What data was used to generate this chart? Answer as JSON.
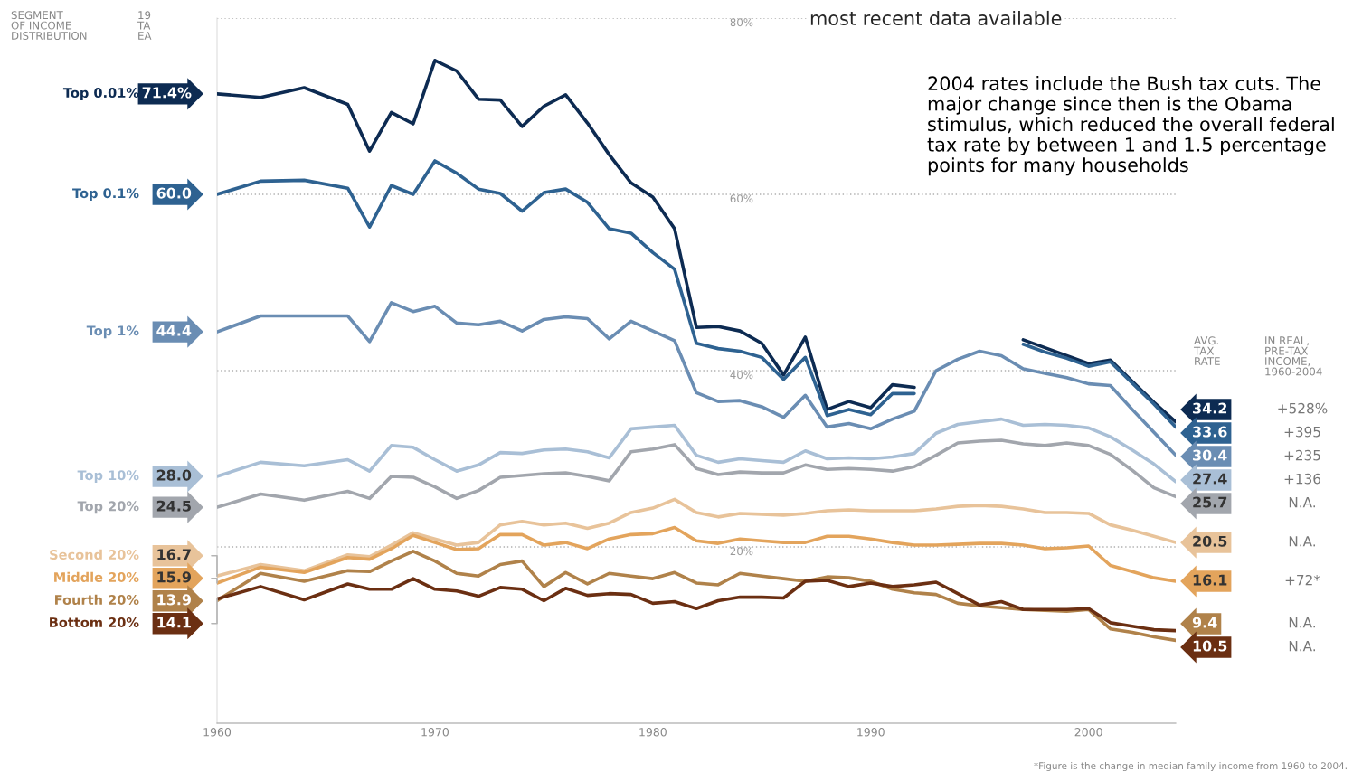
{
  "chart_data": {
    "type": "line",
    "title": "most recent data available",
    "line_style": "solid",
    "grid": "y",
    "x": [
      1960,
      1962,
      1964,
      1966,
      1967,
      1968,
      1969,
      1970,
      1971,
      1972,
      1973,
      1974,
      1975,
      1976,
      1977,
      1978,
      1979,
      1980,
      1981,
      1982,
      1983,
      1984,
      1985,
      1986,
      1987,
      1988,
      1989,
      1990,
      1991,
      1992,
      1993,
      1994,
      1995,
      1996,
      1997,
      1998,
      1999,
      2000,
      2001,
      2002,
      2003,
      2004
    ],
    "xlim": [
      1960,
      2004
    ],
    "xticks": [
      1960,
      1970,
      1980,
      1990,
      2000
    ],
    "ylim": [
      0,
      80
    ],
    "yticks": [
      {
        "value": 20,
        "label": "20%"
      },
      {
        "value": 40,
        "label": "40%"
      },
      {
        "value": 60,
        "label": "60%"
      },
      {
        "value": 80,
        "label": "80%"
      }
    ],
    "series": [
      {
        "name": "Top 0.01%",
        "color": "#0d2b52",
        "values": [
          71.4,
          71.0,
          72.1,
          70.2,
          64.9,
          69.3,
          68.0,
          75.2,
          74.0,
          70.8,
          70.7,
          67.7,
          70.0,
          71.3,
          68.1,
          64.5,
          61.3,
          59.7,
          56.1,
          44.9,
          45.0,
          44.5,
          43.1,
          39.5,
          43.8,
          35.6,
          36.5,
          35.8,
          38.4,
          38.1,
          null,
          null,
          null,
          null,
          43.5,
          42.6,
          41.7,
          40.8,
          41.2,
          38.8,
          36.4,
          34.2
        ],
        "value_labels": [
          "71.4%",
          null,
          null,
          null,
          null,
          null,
          null,
          null,
          null,
          null,
          null,
          null,
          null,
          null,
          null,
          null,
          null,
          null,
          null,
          null,
          null,
          null,
          null,
          null,
          null,
          null,
          null,
          null,
          null,
          null,
          null,
          null,
          null,
          null,
          null,
          null,
          null,
          null,
          null,
          null,
          null,
          "34.2"
        ]
      },
      {
        "name": "Top 0.1%",
        "color": "#2e6291",
        "values": [
          60.0,
          61.5,
          61.6,
          60.7,
          56.3,
          61.0,
          60.0,
          63.8,
          62.4,
          60.6,
          60.1,
          58.1,
          60.2,
          60.6,
          59.1,
          56.1,
          55.6,
          53.4,
          51.5,
          43.1,
          42.5,
          42.2,
          41.5,
          39.0,
          41.5,
          34.9,
          35.6,
          35.0,
          37.4,
          37.4,
          null,
          null,
          null,
          null,
          43.0,
          42.1,
          41.4,
          40.5,
          41.0,
          38.6,
          36.2,
          33.6
        ],
        "value_labels": [
          "60.0",
          null,
          null,
          null,
          null,
          null,
          null,
          null,
          null,
          null,
          null,
          null,
          null,
          null,
          null,
          null,
          null,
          null,
          null,
          null,
          null,
          null,
          null,
          null,
          null,
          null,
          null,
          null,
          null,
          null,
          null,
          null,
          null,
          null,
          null,
          null,
          null,
          null,
          null,
          null,
          null,
          "33.6"
        ]
      },
      {
        "name": "Top 1%",
        "color": "#6a8db3",
        "values": [
          44.4,
          46.2,
          46.2,
          46.2,
          43.3,
          47.7,
          46.7,
          47.3,
          45.4,
          45.2,
          45.6,
          44.5,
          45.8,
          46.1,
          45.9,
          43.6,
          45.6,
          44.5,
          43.4,
          37.5,
          36.5,
          36.6,
          35.9,
          34.7,
          37.2,
          33.6,
          34.0,
          33.4,
          34.5,
          35.4,
          40.0,
          41.3,
          42.2,
          41.7,
          40.2,
          39.7,
          39.2,
          38.5,
          38.3,
          35.6,
          33.0,
          30.4
        ],
        "value_labels": [
          "44.4",
          null,
          null,
          null,
          null,
          null,
          null,
          null,
          null,
          null,
          null,
          null,
          null,
          null,
          null,
          null,
          null,
          null,
          null,
          null,
          null,
          null,
          null,
          null,
          null,
          null,
          null,
          null,
          null,
          null,
          null,
          null,
          null,
          null,
          null,
          null,
          null,
          null,
          null,
          null,
          null,
          "30.4"
        ]
      },
      {
        "name": "Top 10%",
        "color": "#a9bfd6",
        "values": [
          28.0,
          29.6,
          29.2,
          29.9,
          28.6,
          31.5,
          31.3,
          29.9,
          28.6,
          29.3,
          30.7,
          30.6,
          31.0,
          31.1,
          30.8,
          30.1,
          33.4,
          33.6,
          33.8,
          30.4,
          29.6,
          30.0,
          29.8,
          29.6,
          30.9,
          30.0,
          30.1,
          30.0,
          30.2,
          30.6,
          32.9,
          33.9,
          34.2,
          34.5,
          33.8,
          33.9,
          33.8,
          33.5,
          32.5,
          31.0,
          29.4,
          27.4
        ],
        "value_labels": [
          "28.0",
          null,
          null,
          null,
          null,
          null,
          null,
          null,
          null,
          null,
          null,
          null,
          null,
          null,
          null,
          null,
          null,
          null,
          null,
          null,
          null,
          null,
          null,
          null,
          null,
          null,
          null,
          null,
          null,
          null,
          null,
          null,
          null,
          null,
          null,
          null,
          null,
          null,
          null,
          null,
          null,
          "27.4"
        ]
      },
      {
        "name": "Top 20%",
        "color": "#a2a6ad",
        "values": [
          24.5,
          26.0,
          25.3,
          26.3,
          25.5,
          28.0,
          27.9,
          26.8,
          25.5,
          26.4,
          27.9,
          28.1,
          28.3,
          28.4,
          28.0,
          27.5,
          30.8,
          31.1,
          31.6,
          28.9,
          28.2,
          28.5,
          28.4,
          28.4,
          29.3,
          28.8,
          28.9,
          28.8,
          28.6,
          29.1,
          30.4,
          31.8,
          32.0,
          32.1,
          31.7,
          31.5,
          31.8,
          31.5,
          30.5,
          28.7,
          26.7,
          25.7
        ],
        "value_labels": [
          "24.5",
          null,
          null,
          null,
          null,
          null,
          null,
          null,
          null,
          null,
          null,
          null,
          null,
          null,
          null,
          null,
          null,
          null,
          null,
          null,
          null,
          null,
          null,
          null,
          null,
          null,
          null,
          null,
          null,
          null,
          null,
          null,
          null,
          null,
          null,
          null,
          null,
          null,
          null,
          null,
          null,
          "25.7"
        ]
      },
      {
        "name": "Second 20%",
        "color": "#e8c39a",
        "values": [
          16.7,
          18.0,
          17.3,
          19.1,
          18.9,
          20.2,
          21.6,
          20.9,
          20.2,
          20.5,
          22.5,
          22.9,
          22.5,
          22.7,
          22.1,
          22.7,
          23.9,
          24.4,
          25.4,
          23.9,
          23.4,
          23.8,
          23.7,
          23.6,
          23.8,
          24.1,
          24.2,
          24.1,
          24.1,
          24.1,
          24.3,
          24.6,
          24.7,
          24.6,
          24.3,
          23.9,
          23.9,
          23.8,
          22.5,
          21.9,
          21.2,
          20.5
        ],
        "value_labels": [
          "16.7",
          null,
          null,
          null,
          null,
          null,
          null,
          null,
          null,
          null,
          null,
          null,
          null,
          null,
          null,
          null,
          null,
          null,
          null,
          null,
          null,
          null,
          null,
          null,
          null,
          null,
          null,
          null,
          null,
          null,
          null,
          null,
          null,
          null,
          null,
          null,
          null,
          null,
          null,
          null,
          null,
          "20.5"
        ]
      },
      {
        "name": "Middle 20%",
        "color": "#e3a45c",
        "values": [
          15.9,
          17.7,
          17.1,
          18.8,
          18.6,
          19.8,
          21.3,
          20.5,
          19.7,
          19.8,
          21.4,
          21.4,
          20.2,
          20.5,
          19.8,
          20.9,
          21.4,
          21.5,
          22.2,
          20.7,
          20.4,
          20.9,
          20.7,
          20.5,
          20.5,
          21.2,
          21.2,
          20.9,
          20.5,
          20.2,
          20.2,
          20.3,
          20.4,
          20.4,
          20.2,
          19.8,
          19.9,
          20.1,
          17.9,
          17.2,
          16.5,
          16.1
        ],
        "value_labels": [
          "15.9",
          null,
          null,
          null,
          null,
          null,
          null,
          null,
          null,
          null,
          null,
          null,
          null,
          null,
          null,
          null,
          null,
          null,
          null,
          null,
          null,
          null,
          null,
          null,
          null,
          null,
          null,
          null,
          null,
          null,
          null,
          null,
          null,
          null,
          null,
          null,
          null,
          null,
          null,
          null,
          null,
          "16.1"
        ]
      },
      {
        "name": "Fourth 20%",
        "color": "#b0824a",
        "values": [
          13.9,
          17.0,
          16.1,
          17.3,
          17.2,
          18.4,
          19.5,
          18.4,
          17.0,
          16.7,
          18.0,
          18.4,
          15.5,
          17.1,
          15.8,
          17.0,
          16.7,
          16.4,
          17.1,
          15.9,
          15.7,
          17.0,
          16.7,
          16.4,
          16.1,
          16.6,
          16.5,
          16.1,
          15.2,
          14.8,
          14.6,
          13.6,
          13.3,
          13.1,
          12.9,
          12.8,
          12.7,
          12.9,
          10.7,
          10.3,
          9.8,
          9.4
        ],
        "value_labels": [
          "13.9",
          null,
          null,
          null,
          null,
          null,
          null,
          null,
          null,
          null,
          null,
          null,
          null,
          null,
          null,
          null,
          null,
          null,
          null,
          null,
          null,
          null,
          null,
          null,
          null,
          null,
          null,
          null,
          null,
          null,
          null,
          null,
          null,
          null,
          null,
          null,
          null,
          null,
          null,
          null,
          null,
          "9.4"
        ]
      },
      {
        "name": "Bottom 20%",
        "color": "#6b2f12",
        "values": [
          14.1,
          15.5,
          14.0,
          15.8,
          15.2,
          15.2,
          16.4,
          15.2,
          15.0,
          14.4,
          15.4,
          15.2,
          13.9,
          15.3,
          14.5,
          14.7,
          14.6,
          13.6,
          13.8,
          13.0,
          13.9,
          14.3,
          14.3,
          14.2,
          16.1,
          16.2,
          15.5,
          15.9,
          15.5,
          15.7,
          16.0,
          14.7,
          13.4,
          13.8,
          12.9,
          12.9,
          12.9,
          13.0,
          11.4,
          11.0,
          10.6,
          10.5
        ],
        "value_labels": [
          "14.1",
          null,
          null,
          null,
          null,
          null,
          null,
          null,
          null,
          null,
          null,
          null,
          null,
          null,
          null,
          null,
          null,
          null,
          null,
          null,
          null,
          null,
          null,
          null,
          null,
          null,
          null,
          null,
          null,
          null,
          null,
          null,
          null,
          null,
          null,
          null,
          null,
          null,
          null,
          null,
          null,
          "10.5"
        ]
      }
    ],
    "annotations": [
      "SEGMENT\nOF INCOME\nDISTRIBUTION",
      "19\nTA\nEA",
      "AVG.\nTAX\nRATE",
      "IN REAL,\nPRE-TAX\nINCOME,\n1960-2004",
      "2004 rates include the Bush tax cuts. The major change since then is the Obama stimulus, which reduced the overall federal tax rate by between 1 and 1.5 percentage points for many households",
      "*Figure is the change in median family income from 1960 to 2004.",
      "+528%",
      "+395",
      "+235",
      "+136",
      "N.A.",
      "N.A.",
      "+72*",
      "N.A.",
      "N.A."
    ]
  }
}
